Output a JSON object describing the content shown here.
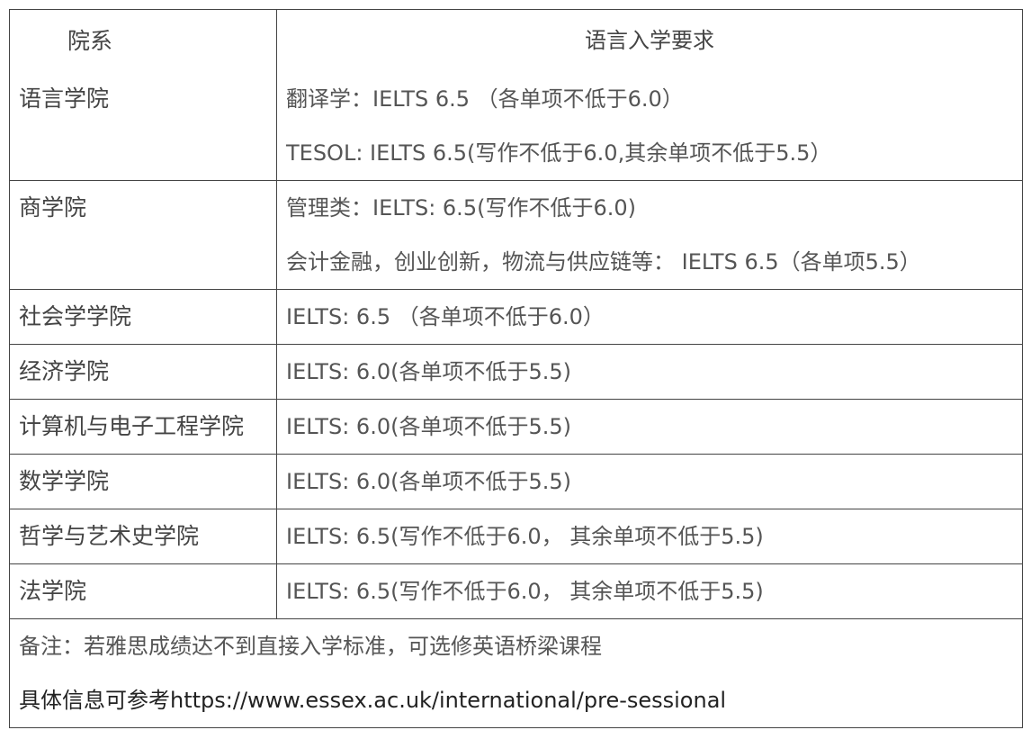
{
  "header": {
    "dept": "院系",
    "requirement": "语言入学要求"
  },
  "rows": [
    {
      "dept": "语言学院",
      "requirements": [
        "翻译学：IELTS 6.5 （各单项不低于6.0）",
        "TESOL: IELTS 6.5(写作不低于6.0,其余单项不低于5.5）"
      ]
    },
    {
      "dept": "商学院",
      "requirements": [
        "管理类：IELTS: 6.5(写作不低于6.0)",
        "会计金融，创业创新，物流与供应链等：  IELTS 6.5（各单项5.5）"
      ]
    },
    {
      "dept": "社会学学院",
      "requirements": [
        "IELTS: 6.5 （各单项不低于6.0）"
      ]
    },
    {
      "dept": "经济学院",
      "requirements": [
        "IELTS: 6.0(各单项不低于5.5)"
      ]
    },
    {
      "dept": "计算机与电子工程学院",
      "requirements": [
        "IELTS: 6.0(各单项不低于5.5)"
      ]
    },
    {
      "dept": "数学学院",
      "requirements": [
        "IELTS: 6.0(各单项不低于5.5)"
      ]
    },
    {
      "dept": "哲学与艺术史学院",
      "requirements": [
        "IELTS: 6.5(写作不低于6.0， 其余单项不低于5.5)"
      ]
    },
    {
      "dept": "法学院",
      "requirements": [
        "IELTS: 6.5(写作不低于6.0， 其余单项不低于5.5)"
      ]
    }
  ],
  "note": {
    "line1": "备注：若雅思成绩达不到直接入学标准，可选修英语桥梁课程",
    "line2": "具体信息可参考https://www.essex.ac.uk/international/pre-sessional"
  }
}
